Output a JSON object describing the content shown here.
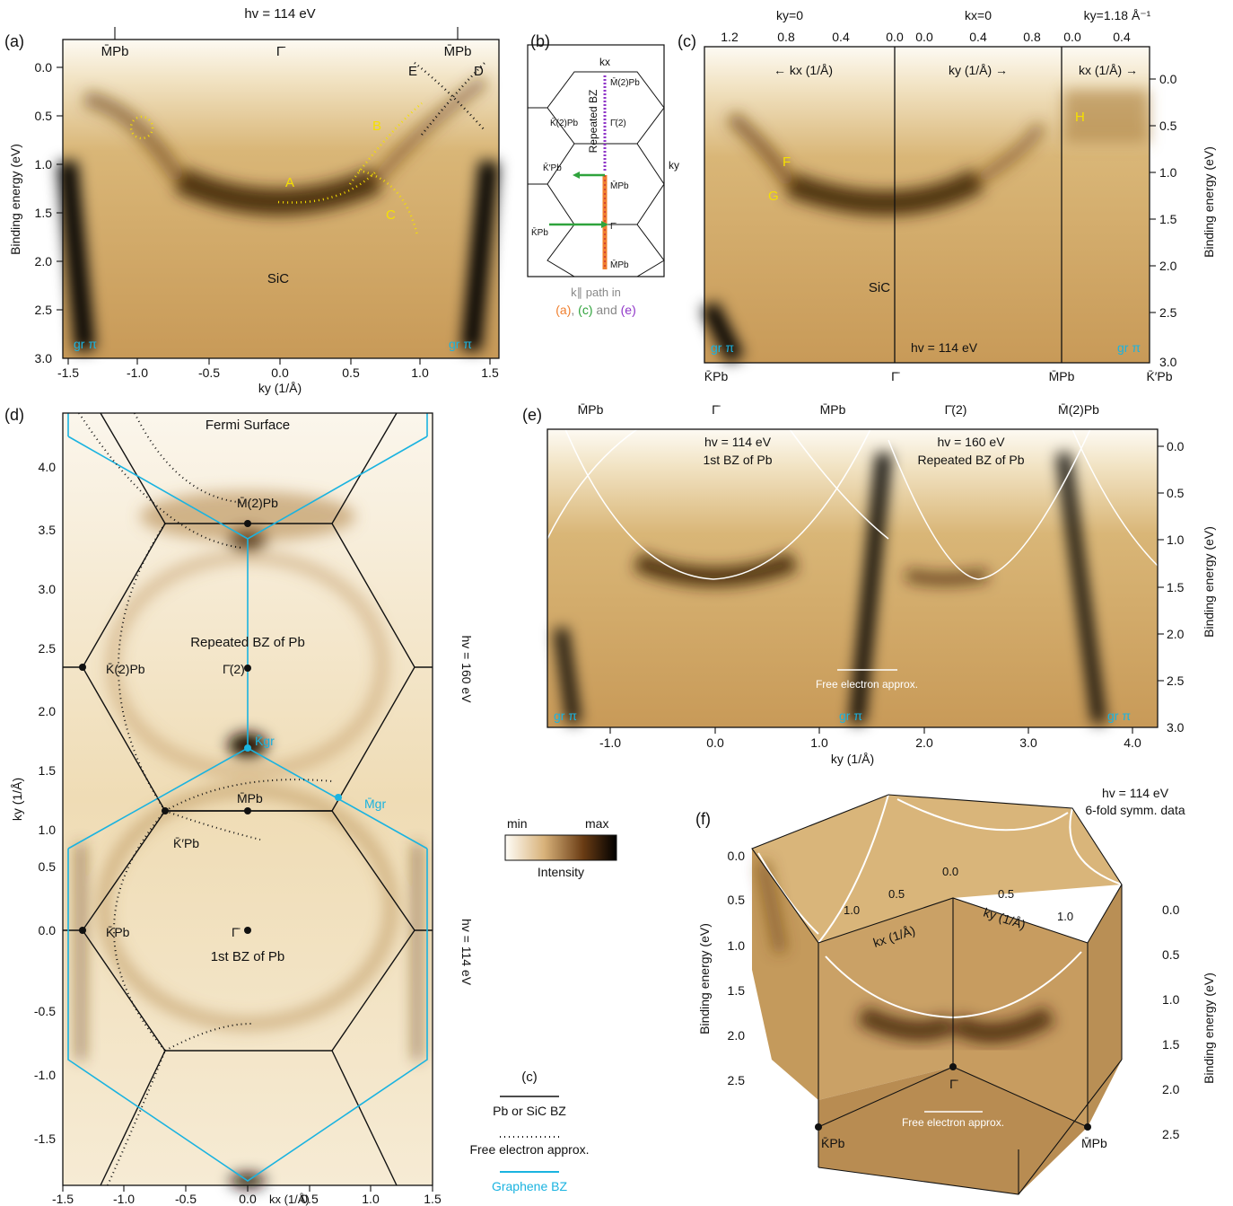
{
  "panels": {
    "a": {
      "label": "(a)",
      "hv": "hv = 114 eV",
      "xlabel": "ky (1/Å)",
      "ylabel": "Binding energy (eV)",
      "xticks": [
        "-1.5",
        "-1.0",
        "-0.5",
        "0.0",
        "0.5",
        "1.0",
        "1.5"
      ],
      "yticks": [
        "0.0",
        "0.5",
        "1.0",
        "1.5",
        "2.0",
        "2.5",
        "3.0"
      ],
      "top_labels": [
        "M̄Pb",
        "Γ̄",
        "M̄Pb"
      ],
      "bands": [
        "A",
        "B",
        "C",
        "D",
        "E"
      ],
      "substrate": "SiC",
      "graphene": [
        "gr π",
        "gr π"
      ]
    },
    "b": {
      "label": "(b)",
      "points": [
        "kx",
        "ky",
        "M̄(2)Pb",
        "Γ̄(2)",
        "K̄(2)Pb",
        "K̄′Pb",
        "M̄Pb",
        "Γ̄",
        "K̄Pb",
        "M̄Pb"
      ],
      "rotated_text": "Repeated BZ",
      "legend_1": "k∥ path in",
      "legend_a": "(a)",
      "legend_sep1": ",",
      "legend_c": "(c)",
      "legend_and": "and",
      "legend_e": "(e)"
    },
    "c": {
      "label": "(c)",
      "segments_top": [
        "ky=0",
        "kx=0",
        "ky=1.18 Å⁻¹"
      ],
      "top_ticks": [
        "1.2",
        "0.8",
        "0.4",
        "0.0",
        "0.0",
        "0.4",
        "0.8",
        "0.0",
        "0.4"
      ],
      "dir_labels": [
        "← kx (1/Å)",
        "ky (1/Å) →",
        "kx (1/Å) →"
      ],
      "bands": [
        "F",
        "G",
        "H"
      ],
      "substrate": "SiC",
      "hv": "hv = 114 eV",
      "graphene": [
        "gr π",
        "gr π"
      ],
      "ylabel": "Binding energy (eV)",
      "yticks": [
        "0.0",
        "0.5",
        "1.0",
        "1.5",
        "2.0",
        "2.5",
        "3.0"
      ],
      "bottom_points": [
        "K̄Pb",
        "Γ̄",
        "M̄Pb",
        "K̄′Pb"
      ]
    },
    "d": {
      "label": "(d)",
      "title": "Fermi Surface",
      "xlabel": "kx (1/Å)",
      "ylabel": "ky (1/Å)",
      "xticks": [
        "-1.5",
        "-1.0",
        "-0.5",
        "0.0",
        "0.5",
        "1.0",
        "1.5"
      ],
      "yticks": [
        "-1.5",
        "-1.0",
        "-0.5",
        "0.0",
        "0.5",
        "1.0",
        "1.5",
        "2.0",
        "2.5",
        "3.0",
        "3.5",
        "4.0"
      ],
      "zone_labels": [
        "Repeated BZ of Pb",
        "1st BZ of Pb"
      ],
      "points": [
        "M̄(2)Pb",
        "K̄(2)Pb",
        "Γ̄(2)",
        "K̄gr",
        "M̄Pb",
        "M̄gr",
        "K̄′Pb",
        "K̄Pb",
        "Γ̄"
      ],
      "hv_side": [
        "hv = 160 eV",
        "hv = 114 eV"
      ]
    },
    "e": {
      "label": "(e)",
      "top_points": [
        "M̄Pb",
        "Γ̄",
        "M̄Pb",
        "Γ̄(2)",
        "M̄(2)Pb"
      ],
      "left_title": [
        "hv = 114 eV",
        "1st BZ of Pb"
      ],
      "right_title": [
        "hv = 160 eV",
        "Repeated BZ of Pb"
      ],
      "free_electron": "Free electron approx.",
      "graphene": [
        "gr π",
        "gr π",
        "gr π"
      ],
      "xlabel": "ky (1/Å)",
      "xticks": [
        "-1.0",
        "0.0",
        "1.0",
        "2.0",
        "3.0",
        "4.0"
      ],
      "ylabel": "Binding energy (eV)",
      "yticks": [
        "0.0",
        "0.5",
        "1.0",
        "1.5",
        "2.0",
        "2.5",
        "3.0"
      ]
    },
    "f": {
      "label": "(f)",
      "hv": "hv = 114 eV",
      "note": "6-fold symm. data",
      "left_yticks": [
        "0.0",
        "0.5",
        "1.0",
        "1.5",
        "2.0",
        "2.5"
      ],
      "right_yticks": [
        "0.0",
        "0.5",
        "1.0",
        "1.5",
        "2.0",
        "2.5"
      ],
      "ylabel": "Binding energy (eV)",
      "kx_label": "kx (1/Å)",
      "ky_label": "ky (1/Å)",
      "kx_ticks": [
        "1.0",
        "0.5",
        "0.0"
      ],
      "ky_ticks": [
        "0.5",
        "1.0"
      ],
      "points": [
        "Γ̄",
        "K̄Pb",
        "M̄Pb"
      ],
      "free_electron": "Free electron approx."
    }
  },
  "colorbar": {
    "min": "min",
    "max": "max",
    "label": "Intensity"
  },
  "legend": {
    "title": "(c)",
    "items": [
      "Pb or SiC BZ",
      "Free electron approx.",
      "Graphene BZ"
    ]
  },
  "colors": {
    "accent_yellow": "#f5e000",
    "graphene_cyan": "#1ab3e0",
    "path_orange": "#f07f2e",
    "path_green": "#2fa33c",
    "path_purple": "#8f35c8"
  }
}
